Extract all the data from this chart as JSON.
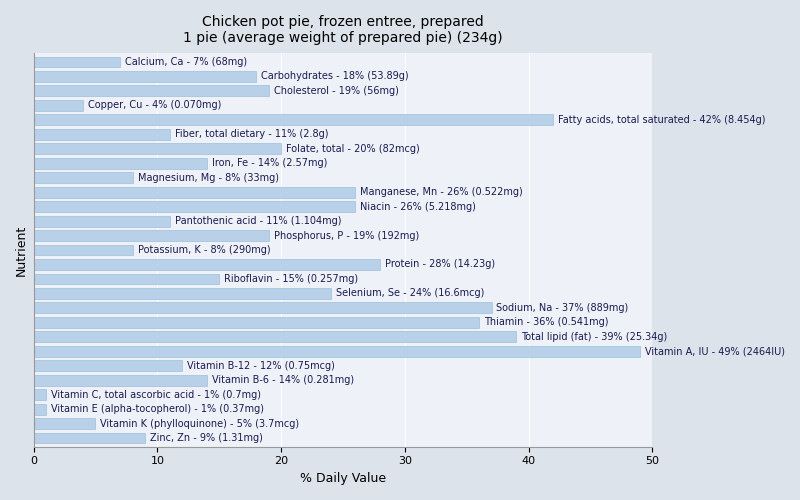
{
  "title": "Chicken pot pie, frozen entree, prepared\n1 pie (average weight of prepared pie) (234g)",
  "xlabel": "% Daily Value",
  "ylabel": "Nutrient",
  "background_color": "#dde3ea",
  "plot_bg_color": "#eef2f8",
  "bar_color": "#b8d0e8",
  "bar_edge_color": "#90b8d8",
  "xlim": [
    0,
    50
  ],
  "nutrients": [
    {
      "label": "Calcium, Ca - 7% (68mg)",
      "value": 7
    },
    {
      "label": "Carbohydrates - 18% (53.89g)",
      "value": 18
    },
    {
      "label": "Cholesterol - 19% (56mg)",
      "value": 19
    },
    {
      "label": "Copper, Cu - 4% (0.070mg)",
      "value": 4
    },
    {
      "label": "Fatty acids, total saturated - 42% (8.454g)",
      "value": 42
    },
    {
      "label": "Fiber, total dietary - 11% (2.8g)",
      "value": 11
    },
    {
      "label": "Folate, total - 20% (82mcg)",
      "value": 20
    },
    {
      "label": "Iron, Fe - 14% (2.57mg)",
      "value": 14
    },
    {
      "label": "Magnesium, Mg - 8% (33mg)",
      "value": 8
    },
    {
      "label": "Manganese, Mn - 26% (0.522mg)",
      "value": 26
    },
    {
      "label": "Niacin - 26% (5.218mg)",
      "value": 26
    },
    {
      "label": "Pantothenic acid - 11% (1.104mg)",
      "value": 11
    },
    {
      "label": "Phosphorus, P - 19% (192mg)",
      "value": 19
    },
    {
      "label": "Potassium, K - 8% (290mg)",
      "value": 8
    },
    {
      "label": "Protein - 28% (14.23g)",
      "value": 28
    },
    {
      "label": "Riboflavin - 15% (0.257mg)",
      "value": 15
    },
    {
      "label": "Selenium, Se - 24% (16.6mcg)",
      "value": 24
    },
    {
      "label": "Sodium, Na - 37% (889mg)",
      "value": 37
    },
    {
      "label": "Thiamin - 36% (0.541mg)",
      "value": 36
    },
    {
      "label": "Total lipid (fat) - 39% (25.34g)",
      "value": 39
    },
    {
      "label": "Vitamin A, IU - 49% (2464IU)",
      "value": 49
    },
    {
      "label": "Vitamin B-12 - 12% (0.75mcg)",
      "value": 12
    },
    {
      "label": "Vitamin B-6 - 14% (0.281mg)",
      "value": 14
    },
    {
      "label": "Vitamin C, total ascorbic acid - 1% (0.7mg)",
      "value": 1
    },
    {
      "label": "Vitamin E (alpha-tocopherol) - 1% (0.37mg)",
      "value": 1
    },
    {
      "label": "Vitamin K (phylloquinone) - 5% (3.7mcg)",
      "value": 5
    },
    {
      "label": "Zinc, Zn - 9% (1.31mg)",
      "value": 9
    }
  ],
  "title_fontsize": 10,
  "axis_label_fontsize": 9,
  "bar_label_fontsize": 7,
  "tick_fontsize": 8
}
